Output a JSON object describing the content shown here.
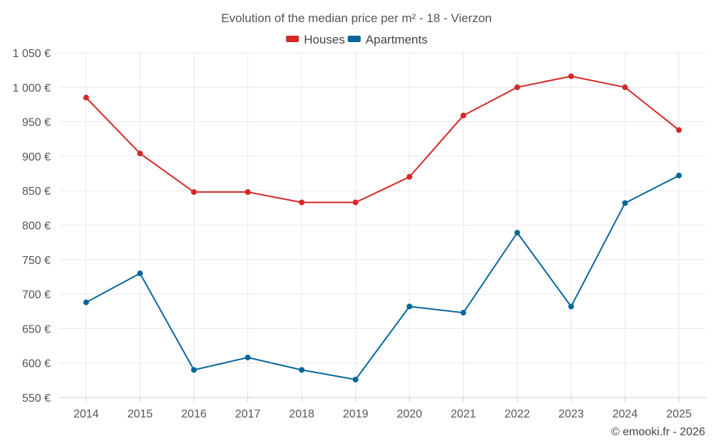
{
  "chart_data": {
    "type": "line",
    "title": "Evolution of the median price per m² - 18 - Vierzon",
    "categories": [
      "2014",
      "2015",
      "2016",
      "2017",
      "2018",
      "2019",
      "2020",
      "2021",
      "2022",
      "2023",
      "2024",
      "2025"
    ],
    "series": [
      {
        "name": "Houses",
        "color": "#d62728",
        "values": [
          985,
          904,
          848,
          848,
          833,
          833,
          870,
          959,
          1000,
          1016,
          1000,
          938
        ]
      },
      {
        "name": "Apartments",
        "color": "#08679c",
        "values": [
          688,
          730,
          590,
          608,
          590,
          576,
          682,
          673,
          789,
          682,
          832,
          872
        ]
      }
    ],
    "yticks": [
      550,
      600,
      650,
      700,
      750,
      800,
      850,
      900,
      950,
      1000,
      1050
    ],
    "ytick_labels": [
      "550 €",
      "600 €",
      "650 €",
      "700 €",
      "750 €",
      "800 €",
      "850 €",
      "900 €",
      "950 €",
      "1 000 €",
      "1 050 €"
    ],
    "ylim": [
      550,
      1050
    ],
    "grid": true,
    "legend_position": "top-center",
    "xlabel": "",
    "ylabel": ""
  },
  "credit": "© emooki.fr - 2026"
}
